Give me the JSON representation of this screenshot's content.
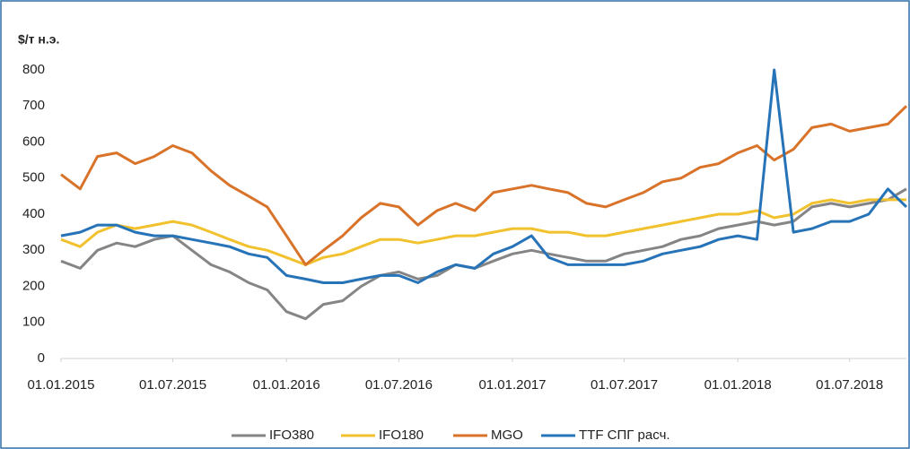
{
  "chart_data": {
    "type": "line",
    "title": "$/т н.э.",
    "x": [
      "01.01.2015",
      "01.02.2015",
      "01.03.2015",
      "01.04.2015",
      "01.05.2015",
      "01.06.2015",
      "01.07.2015",
      "01.08.2015",
      "01.09.2015",
      "01.10.2015",
      "01.11.2015",
      "01.12.2015",
      "01.01.2016",
      "01.02.2016",
      "01.03.2016",
      "01.04.2016",
      "01.05.2016",
      "01.06.2016",
      "01.07.2016",
      "01.08.2016",
      "01.09.2016",
      "01.10.2016",
      "01.11.2016",
      "01.12.2016",
      "01.01.2017",
      "01.02.2017",
      "01.03.2017",
      "01.04.2017",
      "01.05.2017",
      "01.06.2017",
      "01.07.2017",
      "01.08.2017",
      "01.09.2017",
      "01.10.2017",
      "01.11.2017",
      "01.12.2017",
      "01.01.2018",
      "01.02.2018",
      "01.03.2018",
      "01.04.2018",
      "01.05.2018",
      "01.06.2018",
      "01.07.2018",
      "01.08.2018",
      "01.09.2018",
      "01.10.2018"
    ],
    "series": [
      {
        "name": "IFO380",
        "color": "#858585",
        "values": [
          270,
          250,
          300,
          320,
          310,
          330,
          340,
          300,
          260,
          240,
          210,
          190,
          130,
          110,
          150,
          160,
          200,
          230,
          240,
          220,
          230,
          260,
          250,
          270,
          290,
          300,
          290,
          280,
          270,
          270,
          290,
          300,
          310,
          330,
          340,
          360,
          370,
          380,
          370,
          380,
          420,
          430,
          420,
          430,
          440,
          470
        ]
      },
      {
        "name": "IFO180",
        "color": "#f2c12e",
        "values": [
          330,
          310,
          350,
          370,
          360,
          370,
          380,
          370,
          350,
          330,
          310,
          300,
          280,
          260,
          280,
          290,
          310,
          330,
          330,
          320,
          330,
          340,
          340,
          350,
          360,
          360,
          350,
          350,
          340,
          340,
          350,
          360,
          370,
          380,
          390,
          400,
          400,
          410,
          390,
          400,
          430,
          440,
          430,
          440,
          440,
          440
        ]
      },
      {
        "name": "MGO",
        "color": "#d9732a",
        "values": [
          510,
          470,
          560,
          570,
          540,
          560,
          590,
          570,
          520,
          480,
          450,
          420,
          340,
          260,
          300,
          340,
          390,
          430,
          420,
          370,
          410,
          430,
          410,
          460,
          470,
          480,
          470,
          460,
          430,
          420,
          440,
          460,
          490,
          500,
          530,
          540,
          570,
          590,
          550,
          580,
          640,
          650,
          630,
          640,
          650,
          700
        ]
      },
      {
        "name": "TTF СПГ расч.",
        "color": "#2673b8",
        "values": [
          340,
          350,
          370,
          370,
          350,
          340,
          340,
          330,
          320,
          310,
          290,
          280,
          230,
          220,
          210,
          210,
          220,
          230,
          230,
          210,
          240,
          260,
          250,
          290,
          310,
          340,
          280,
          260,
          260,
          260,
          260,
          270,
          290,
          300,
          310,
          330,
          340,
          330,
          800,
          350,
          360,
          380,
          380,
          400,
          470,
          420
        ]
      }
    ],
    "xlim": [
      "01.01.2015",
      "01.10.2018"
    ],
    "xticks": [
      "01.01.2015",
      "01.07.2015",
      "01.01.2016",
      "01.07.2016",
      "01.01.2017",
      "01.07.2017",
      "01.01.2018",
      "01.07.2018"
    ],
    "ylim": [
      0,
      800
    ],
    "yticks": [
      0,
      100,
      200,
      300,
      400,
      500,
      600,
      700,
      800
    ],
    "legend": "bottom"
  }
}
